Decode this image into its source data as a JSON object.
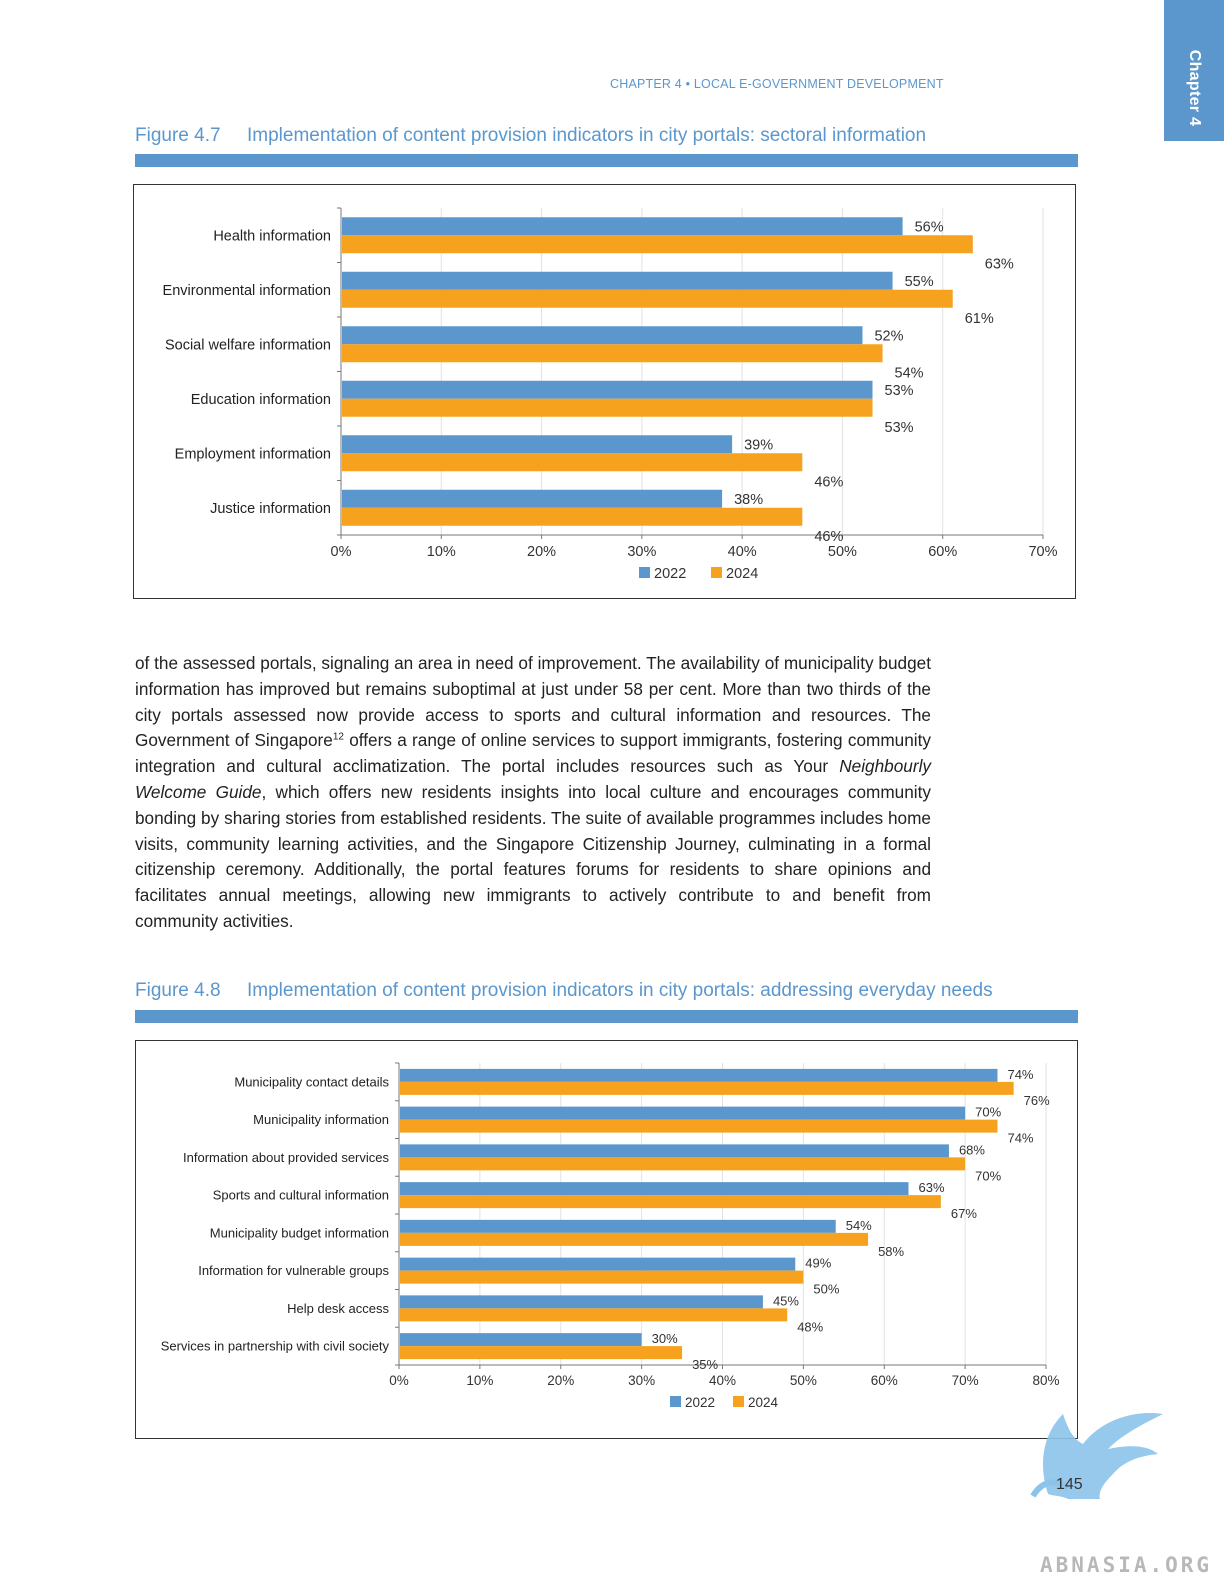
{
  "chapter_tab": "Chapter 4",
  "running_head": "CHAPTER 4 • LOCAL E-GOVERNMENT DEVELOPMENT",
  "figure1": {
    "number": "Figure 4.7",
    "title": "Implementation of content provision indicators in city portals: sectoral information"
  },
  "figure2": {
    "number": "Figure 4.8",
    "title": "Implementation of content provision indicators in city portals: addressing everyday needs"
  },
  "body_text": {
    "part1": "of the assessed portals, signaling an area in need of improvement. The availability of municipality budget information has improved but remains suboptimal at just under 58 per cent. More than two thirds of the city portals assessed now provide access to sports and cultural information and resources. The Government of Singapore",
    "footnote_ref": "12",
    "part2": " offers a range of online services to support immigrants, fostering community integration and cultural acclimatization. The portal includes resources such as Your ",
    "italic": "Neighbourly Welcome Guide",
    "part3": ", which offers new residents insights into local culture and encourages community bonding by sharing stories from established residents. The suite of available programmes includes home visits, community learning activities, and the Singapore Citizenship Journey, culminating in a formal citizenship ceremony. Additionally, the portal features forums for residents to share opinions and facilitates annual meetings, allowing new immigrants to actively contribute to and benefit from community activities."
  },
  "page_number": "145",
  "watermark": "ABNASIA.ORG",
  "colors": {
    "series_2022": "#5b97cc",
    "series_2024": "#f6a21e",
    "accent": "#5b97cc"
  },
  "chart_data": [
    {
      "type": "bar",
      "orientation": "horizontal",
      "title": "Implementation of content provision indicators in city portals: sectoral information",
      "categories": [
        "Health information",
        "Environmental information",
        "Social welfare information",
        "Education information",
        "Employment information",
        "Justice information"
      ],
      "series": [
        {
          "name": "2022",
          "values": [
            56,
            55,
            52,
            53,
            39,
            38
          ]
        },
        {
          "name": "2024",
          "values": [
            63,
            61,
            54,
            53,
            46,
            46
          ]
        }
      ],
      "value_suffix": "%",
      "xlim": [
        0,
        70
      ],
      "xticks": [
        "0%",
        "10%",
        "20%",
        "30%",
        "40%",
        "50%",
        "60%",
        "70%"
      ],
      "grid": true,
      "legend": "bottom-center"
    },
    {
      "type": "bar",
      "orientation": "horizontal",
      "title": "Implementation of content provision indicators in city portals: addressing everyday needs",
      "categories": [
        "Municipality contact details",
        "Municipality information",
        "Information about provided services",
        "Sports and cultural information",
        "Municipality budget information",
        "Information for vulnerable groups",
        "Help desk access",
        "Services in partnership with civil society"
      ],
      "series": [
        {
          "name": "2022",
          "values": [
            74,
            70,
            68,
            63,
            54,
            49,
            45,
            30
          ]
        },
        {
          "name": "2024",
          "values": [
            76,
            74,
            70,
            67,
            58,
            50,
            48,
            35
          ]
        }
      ],
      "value_suffix": "%",
      "xlim": [
        0,
        80
      ],
      "xticks": [
        "0%",
        "10%",
        "20%",
        "30%",
        "40%",
        "50%",
        "60%",
        "70%",
        "80%"
      ],
      "grid": true,
      "legend": "bottom-center"
    }
  ]
}
